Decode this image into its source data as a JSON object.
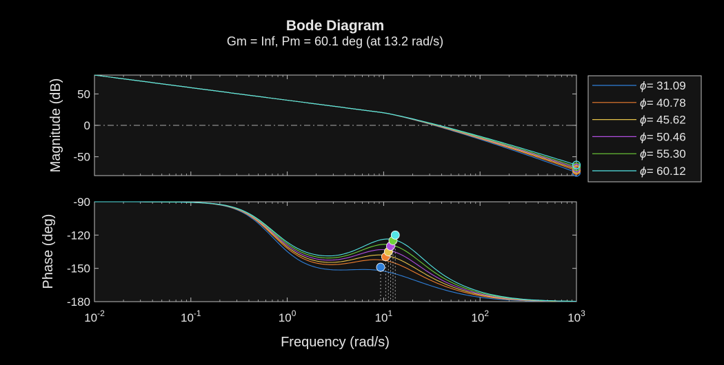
{
  "chart_data": {
    "type": "line",
    "title": "Bode Diagram",
    "subtitle": "Gm = Inf,  Pm = 60.1 deg (at 13.2 rad/s)",
    "xlabel": "Frequency (rad/s)",
    "x_scale": "log",
    "xlim": [
      0.01,
      1000
    ],
    "x_ticks": [
      {
        "base": "10",
        "exp": "-2",
        "value": 0.01
      },
      {
        "base": "10",
        "exp": "-1",
        "value": 0.1
      },
      {
        "base": "10",
        "exp": "0",
        "value": 1
      },
      {
        "base": "10",
        "exp": "1",
        "value": 10
      },
      {
        "base": "10",
        "exp": "2",
        "value": 100
      },
      {
        "base": "10",
        "exp": "3",
        "value": 1000
      }
    ],
    "grid": false,
    "legend_placement": "right of magnitude plot",
    "legend_symbol": "ϕ=",
    "background": "#141414",
    "axis_color": "#bfbfbf",
    "magnitude": {
      "ylabel": "Magnitude (dB)",
      "ylim": [
        -80,
        80
      ],
      "y_ticks": [
        50,
        0,
        -50
      ],
      "reference_line": 0
    },
    "phase": {
      "ylabel": "Phase (deg)",
      "ylim": [
        -180,
        -90
      ],
      "y_ticks": [
        -90,
        -120,
        -150,
        -180
      ]
    },
    "series": [
      {
        "name": "31.09",
        "color": "#2f7fd9",
        "peak_w": 9.3,
        "peak_phase": -149,
        "low_phase": -154,
        "end_mag": -75
      },
      {
        "name": "40.78",
        "color": "#f07f2e",
        "peak_w": 10.5,
        "peak_phase": -139.5,
        "low_phase": -150,
        "end_mag": -72
      },
      {
        "name": "45.62",
        "color": "#e6c24a",
        "peak_w": 11.2,
        "peak_phase": -135,
        "low_phase": -148,
        "end_mag": -70
      },
      {
        "name": "50.46",
        "color": "#b04ee0",
        "peak_w": 11.8,
        "peak_phase": -130,
        "low_phase": -146,
        "end_mag": -68
      },
      {
        "name": "55.30",
        "color": "#6fd23a",
        "peak_w": 12.5,
        "peak_phase": -125,
        "low_phase": -144,
        "end_mag": -66
      },
      {
        "name": "60.12",
        "color": "#54e6e6",
        "peak_w": 13.2,
        "peak_phase": -120,
        "low_phase": -142,
        "end_mag": -63
      }
    ]
  }
}
